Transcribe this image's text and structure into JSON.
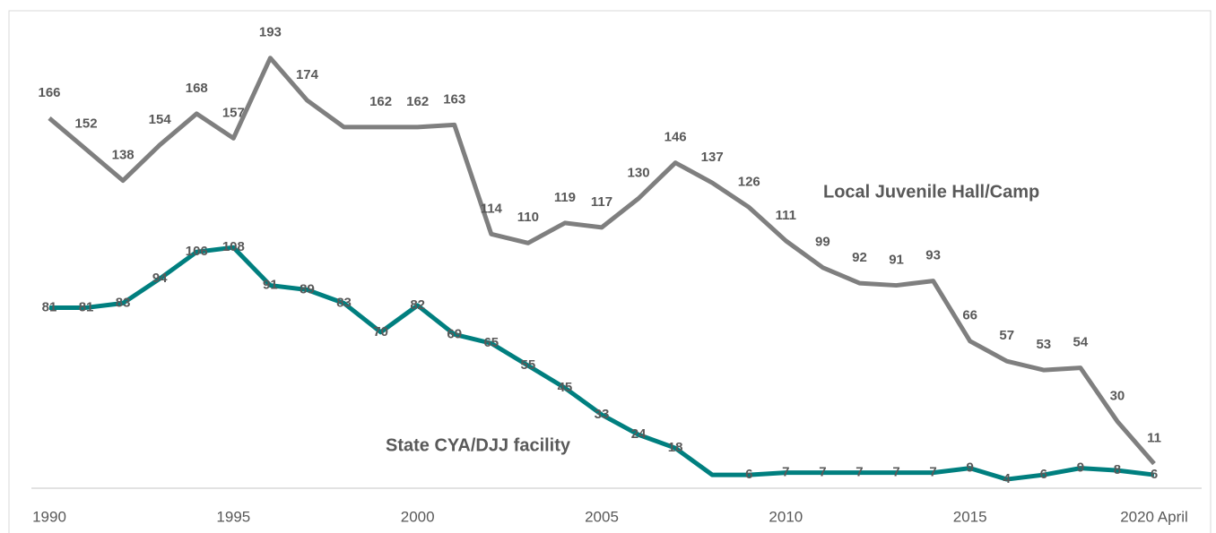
{
  "chart_data": {
    "type": "line",
    "x": [
      1990,
      1991,
      1992,
      1993,
      1994,
      1995,
      1996,
      1997,
      1998,
      1999,
      2000,
      2001,
      2002,
      2003,
      2004,
      2005,
      2006,
      2007,
      2008,
      2009,
      2010,
      2011,
      2012,
      2013,
      2014,
      2015,
      2016,
      2017,
      2018,
      2019,
      2020
    ],
    "xlim": [
      1990,
      2020
    ],
    "xticks": [
      1990,
      1995,
      2000,
      2005,
      2010,
      2015,
      {
        "value": 2020,
        "label": "2020 April"
      }
    ],
    "ylim": [
      0,
      215
    ],
    "series": [
      {
        "name": "Local Juvenile Hall/Camp",
        "color": "#7f7f7f",
        "values": [
          166,
          152,
          138,
          154,
          168,
          157,
          193,
          174,
          162,
          162,
          162,
          163,
          114,
          110,
          119,
          117,
          130,
          146,
          137,
          126,
          111,
          99,
          92,
          91,
          93,
          66,
          57,
          53,
          54,
          30,
          11
        ],
        "value_labels": [
          "166",
          "152",
          "138",
          "154",
          "168",
          "157",
          "193",
          "174",
          null,
          "162",
          "162",
          "163",
          "114",
          "110",
          "119",
          "117",
          "130",
          "146",
          "137",
          "126",
          "111",
          "99",
          "92",
          "91",
          "93",
          "66",
          "57",
          "53",
          "54",
          "30",
          "11"
        ]
      },
      {
        "name": "State CYA/DJJ facility",
        "color": "#007f7f",
        "values": [
          81,
          81,
          83,
          94,
          106,
          108,
          91,
          89,
          83,
          70,
          82,
          69,
          65,
          55,
          45,
          33,
          24,
          18,
          6,
          6,
          7,
          7,
          7,
          7,
          7,
          9,
          4,
          6,
          9,
          8,
          6
        ],
        "value_labels": [
          "81",
          "81",
          "83",
          "94",
          "106",
          "108",
          "91",
          "89",
          "83",
          "70",
          "82",
          "69",
          "65",
          "55",
          "45",
          "33",
          "24",
          "18",
          null,
          "6",
          "7",
          "7",
          "7",
          "7",
          "7",
          "9",
          "4",
          "6",
          "9",
          "8",
          "6"
        ]
      }
    ]
  }
}
